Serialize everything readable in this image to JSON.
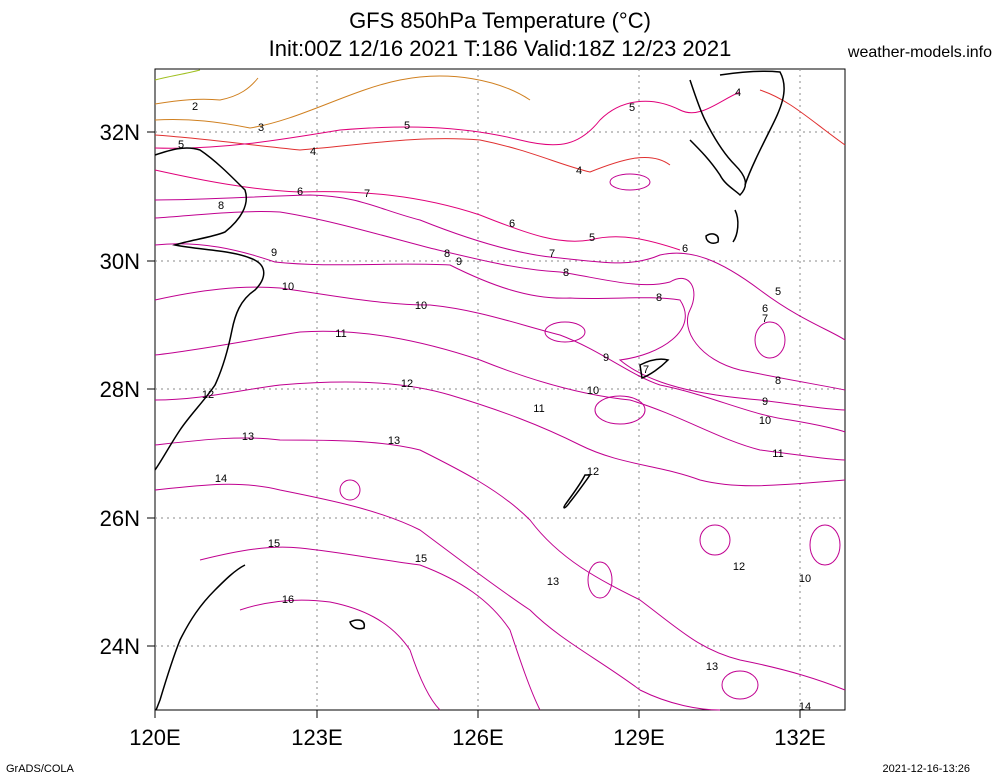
{
  "header": {
    "title_line1": "GFS 850hPa Temperature (°C)",
    "title_line2": "Init:00Z 12/16 2021 T:186 Valid:18Z 12/23 2021",
    "site": "weather-models.info"
  },
  "footer": {
    "left": "GrADS/COLA",
    "right": "2021-12-16-13:26"
  },
  "map": {
    "lon_range": [
      120,
      133
    ],
    "lat_range": [
      23,
      33
    ],
    "x_ticks": [
      "120E",
      "123E",
      "126E",
      "129E",
      "132E"
    ],
    "y_ticks": [
      "32N",
      "30N",
      "28N",
      "26N",
      "24N"
    ],
    "grid": "dotted",
    "colors": {
      "cold": "#a0c020",
      "cool": "#d08020",
      "mid": "#e03030",
      "warm": "#e0007a",
      "warmer": "#c00090",
      "coast": "#000000"
    },
    "contour_labels": [
      "2",
      "3",
      "4",
      "5",
      "6",
      "7",
      "8",
      "9",
      "10",
      "11",
      "12",
      "13",
      "14",
      "15",
      "16"
    ]
  }
}
